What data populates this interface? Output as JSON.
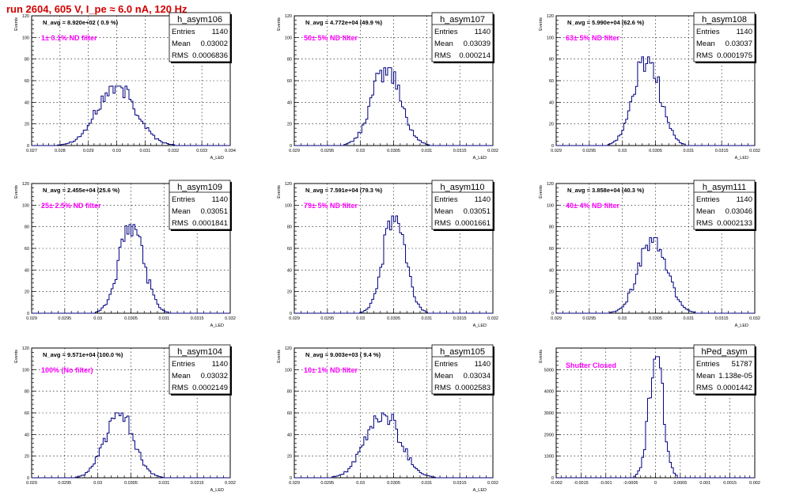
{
  "title": "run 2604,   605 V, I_pe ≈ 6.0 nA, 120 Hz",
  "colors": {
    "title": "#d00000",
    "histogram": "#00007f",
    "annotation": "#ff00ff",
    "grid": "#000000"
  },
  "stat_labels": {
    "entries": "Entries",
    "mean": "Mean",
    "rms": "RMS"
  },
  "chart_data": [
    {
      "type": "bar",
      "name": "h_asym106",
      "navg": "N_avg = 8.920e+02 ( 0.9 %)",
      "filter": "1± 0.1% ND filter",
      "stats": {
        "entries": "1140",
        "mean": "0.03002",
        "rms": "0.0006836"
      },
      "xlabel": "A_LED",
      "ylabel": "Events",
      "xlim": [
        0.027,
        0.034
      ],
      "ylim": [
        0,
        120
      ],
      "xticks": [
        0.027,
        0.028,
        0.029,
        0.03,
        0.031,
        0.032,
        0.033,
        0.034
      ],
      "xtick_labels": [
        "0.027",
        "0.028",
        "0.029",
        "0.03",
        "0.031",
        "0.032",
        "0.033",
        "0.034"
      ],
      "yticks": [
        0,
        20,
        40,
        60,
        80,
        100,
        120
      ],
      "ytick_labels": [
        "0",
        "20",
        "40",
        "60",
        "80",
        "100",
        "120"
      ],
      "grid": true,
      "legend": "top-right",
      "peak_x": 0.03,
      "peak_y": 55,
      "sigma": 0.00068
    },
    {
      "type": "bar",
      "name": "h_asym107",
      "navg": "N_avg = 4.772e+04 (49.9 %)",
      "filter": "50± 5% ND filter",
      "stats": {
        "entries": "1140",
        "mean": "0.03039",
        "rms": "0.000214"
      },
      "xlabel": "A_LED",
      "ylabel": "Events",
      "xlim": [
        0.029,
        0.032
      ],
      "ylim": [
        0,
        120
      ],
      "xticks": [
        0.029,
        0.0295,
        0.03,
        0.0305,
        0.031,
        0.0315,
        0.032
      ],
      "xtick_labels": [
        "0.029",
        "0.0295",
        "0.03",
        "0.0305",
        "0.031",
        "0.0315",
        "0.032"
      ],
      "yticks": [
        0,
        20,
        40,
        60,
        80,
        100,
        120
      ],
      "ytick_labels": [
        "0",
        "20",
        "40",
        "60",
        "80",
        "100",
        "120"
      ],
      "grid": true,
      "legend": "top-right",
      "peak_x": 0.03039,
      "peak_y": 72,
      "sigma": 0.000214
    },
    {
      "type": "bar",
      "name": "h_asym108",
      "navg": "N_avg = 5.990e+04 (62.6 %)",
      "filter": "63± 5% ND filter",
      "stats": {
        "entries": "1140",
        "mean": "0.03037",
        "rms": "0.0001975"
      },
      "xlabel": "A_LED",
      "ylabel": "Events",
      "xlim": [
        0.029,
        0.032
      ],
      "ylim": [
        0,
        120
      ],
      "xticks": [
        0.029,
        0.0295,
        0.03,
        0.0305,
        0.031,
        0.0315,
        0.032
      ],
      "xtick_labels": [
        "0.029",
        "0.0295",
        "0.03",
        "0.0305",
        "0.031",
        "0.0315",
        "0.032"
      ],
      "yticks": [
        0,
        20,
        40,
        60,
        80,
        100,
        120
      ],
      "ytick_labels": [
        "0",
        "20",
        "40",
        "60",
        "80",
        "100",
        "120"
      ],
      "grid": true,
      "legend": "top-right",
      "peak_x": 0.03037,
      "peak_y": 82,
      "sigma": 0.0001975
    },
    {
      "type": "bar",
      "name": "h_asym109",
      "navg": "N_avg = 2.455e+04 (25.6 %)",
      "filter": "25± 2.5% ND filter",
      "stats": {
        "entries": "1140",
        "mean": "0.03051",
        "rms": "0.0001841"
      },
      "xlabel": "A_LED",
      "ylabel": "Events",
      "xlim": [
        0.029,
        0.032
      ],
      "ylim": [
        0,
        120
      ],
      "xticks": [
        0.029,
        0.0295,
        0.03,
        0.0305,
        0.031,
        0.0315,
        0.032
      ],
      "xtick_labels": [
        "0.029",
        "0.0295",
        "0.03",
        "0.0305",
        "0.031",
        "0.0315",
        "0.032"
      ],
      "yticks": [
        0,
        20,
        40,
        60,
        80,
        100,
        120
      ],
      "ytick_labels": [
        "0",
        "20",
        "40",
        "60",
        "80",
        "100",
        "120"
      ],
      "grid": true,
      "legend": "top-right",
      "peak_x": 0.03051,
      "peak_y": 82,
      "sigma": 0.000184
    },
    {
      "type": "bar",
      "name": "h_asym110",
      "navg": "N_avg = 7.591e+04 (79.3 %)",
      "filter": "79± 5% ND filter",
      "stats": {
        "entries": "1140",
        "mean": "0.03051",
        "rms": "0.0001661"
      },
      "xlabel": "A_LED",
      "ylabel": "Events",
      "xlim": [
        0.029,
        0.032
      ],
      "ylim": [
        0,
        120
      ],
      "xticks": [
        0.029,
        0.0295,
        0.03,
        0.0305,
        0.031,
        0.0315,
        0.032
      ],
      "xtick_labels": [
        "0.029",
        "0.0295",
        "0.03",
        "0.0305",
        "0.031",
        "0.0315",
        "0.032"
      ],
      "yticks": [
        0,
        20,
        40,
        60,
        80,
        100,
        120
      ],
      "ytick_labels": [
        "0",
        "20",
        "40",
        "60",
        "80",
        "100",
        "120"
      ],
      "grid": true,
      "legend": "top-right",
      "peak_x": 0.03051,
      "peak_y": 90,
      "sigma": 0.000166
    },
    {
      "type": "bar",
      "name": "h_asym111",
      "navg": "N_avg = 3.858e+04 (40.3 %)",
      "filter": "40± 4% ND filter",
      "stats": {
        "entries": "1140",
        "mean": "0.03046",
        "rms": "0.0002133"
      },
      "xlabel": "A_LED",
      "ylabel": "Events",
      "xlim": [
        0.029,
        0.032
      ],
      "ylim": [
        0,
        120
      ],
      "xticks": [
        0.029,
        0.0295,
        0.03,
        0.0305,
        0.031,
        0.0315,
        0.032
      ],
      "xtick_labels": [
        "0.029",
        "0.0295",
        "0.03",
        "0.0305",
        "0.031",
        "0.0315",
        "0.032"
      ],
      "yticks": [
        0,
        20,
        40,
        60,
        80,
        100,
        120
      ],
      "ytick_labels": [
        "0",
        "20",
        "40",
        "60",
        "80",
        "100",
        "120"
      ],
      "grid": true,
      "legend": "top-right",
      "peak_x": 0.03046,
      "peak_y": 70,
      "sigma": 0.000213
    },
    {
      "type": "bar",
      "name": "h_asym104",
      "navg": "N_avg = 9.571e+04 (100.0 %)",
      "filter": "100% (No filter)",
      "stats": {
        "entries": "1140",
        "mean": "0.03032",
        "rms": "0.0002149"
      },
      "xlabel": "A_LED",
      "ylabel": "Events",
      "xlim": [
        0.029,
        0.032
      ],
      "ylim": [
        0,
        120
      ],
      "xticks": [
        0.029,
        0.0295,
        0.03,
        0.0305,
        0.031,
        0.0315,
        0.032
      ],
      "xtick_labels": [
        "0.029",
        "0.0295",
        "0.03",
        "0.0305",
        "0.031",
        "0.0315",
        "0.032"
      ],
      "yticks": [
        0,
        20,
        40,
        60,
        80,
        100,
        120
      ],
      "ytick_labels": [
        "0",
        "20",
        "40",
        "60",
        "80",
        "100",
        "120"
      ],
      "grid": true,
      "legend": "top-right",
      "peak_x": 0.03032,
      "peak_y": 60,
      "sigma": 0.000215
    },
    {
      "type": "bar",
      "name": "h_asym105",
      "navg": "N_avg = 9.003e+03 ( 9.4 %)",
      "filter": "10± 1% ND filter",
      "stats": {
        "entries": "1140",
        "mean": "0.03034",
        "rms": "0.0002583"
      },
      "xlabel": "A_LED",
      "ylabel": "Events",
      "xlim": [
        0.029,
        0.032
      ],
      "ylim": [
        0,
        120
      ],
      "xticks": [
        0.029,
        0.0295,
        0.03,
        0.0305,
        0.031,
        0.0315,
        0.032
      ],
      "xtick_labels": [
        "0.029",
        "0.0295",
        "0.03",
        "0.0305",
        "0.031",
        "0.0315",
        "0.032"
      ],
      "yticks": [
        0,
        20,
        40,
        60,
        80,
        100,
        120
      ],
      "ytick_labels": [
        "0",
        "20",
        "40",
        "60",
        "80",
        "100",
        "120"
      ],
      "grid": true,
      "legend": "top-right",
      "peak_x": 0.03034,
      "peak_y": 60,
      "sigma": 0.000258
    },
    {
      "type": "bar",
      "name": "hPed_asym",
      "navg": "",
      "filter": "Shutter Closed",
      "stats": {
        "entries": "51787",
        "mean": "1.138e-05",
        "rms": "0.0001442"
      },
      "xlabel": "",
      "ylabel": "Events",
      "xlim": [
        -0.002,
        0.002
      ],
      "ylim": [
        0,
        6000
      ],
      "xticks": [
        -0.002,
        -0.0015,
        -0.001,
        -0.0005,
        0,
        0.0005,
        0.001,
        0.0015,
        0.002
      ],
      "xtick_labels": [
        "-0.002",
        "-0.0015",
        "-0.001",
        "-0.0005",
        "0",
        "0.0005",
        "0.001",
        "0.0015",
        "0.002"
      ],
      "yticks": [
        0,
        1000,
        2000,
        3000,
        4000,
        5000
      ],
      "ytick_labels": [
        "0",
        "1000",
        "2000",
        "3000",
        "4000",
        "5000"
      ],
      "grid": true,
      "legend": "top-right",
      "peak_x": 1.138e-05,
      "peak_y": 5600,
      "sigma": 0.000144
    }
  ]
}
